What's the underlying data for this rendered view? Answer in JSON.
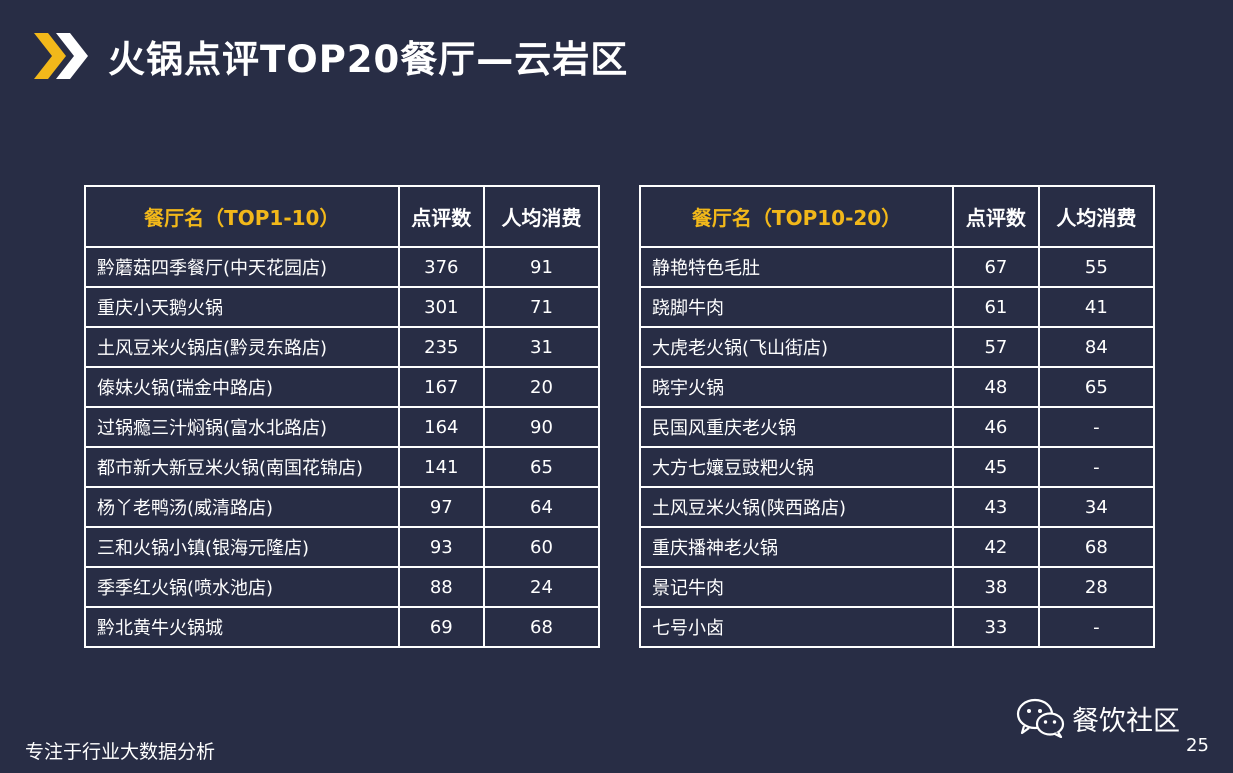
{
  "slide": {
    "title": "火锅点评TOP20餐厅—云岩区",
    "footer_text": "专注于行业大数据分析",
    "brand": "餐饮社区",
    "page_number": "25",
    "accent_color": "#f2b81a",
    "background_color": "#282d45"
  },
  "table_left": {
    "headers": [
      "餐厅名（TOP1-10）",
      "点评数",
      "人均消费"
    ],
    "rows": [
      [
        "黔蘑菇四季餐厅(中天花园店)",
        "376",
        "91"
      ],
      [
        "重庆小天鹅火锅",
        "301",
        "71"
      ],
      [
        "土风豆米火锅店(黔灵东路店)",
        "235",
        "31"
      ],
      [
        "傣妹火锅(瑞金中路店)",
        "167",
        "20"
      ],
      [
        "过锅瘾三汁焖锅(富水北路店)",
        "164",
        "90"
      ],
      [
        "都市新大新豆米火锅(南国花锦店)",
        "141",
        "65"
      ],
      [
        "杨丫老鸭汤(威清路店)",
        "97",
        "64"
      ],
      [
        "三和火锅小镇(银海元隆店)",
        "93",
        "60"
      ],
      [
        "季季红火锅(喷水池店)",
        "88",
        "24"
      ],
      [
        "黔北黄牛火锅城",
        "69",
        "68"
      ]
    ]
  },
  "table_right": {
    "headers": [
      "餐厅名（TOP10-20）",
      "点评数",
      "人均消费"
    ],
    "rows": [
      [
        "静艳特色毛肚",
        "67",
        "55"
      ],
      [
        "跷脚牛肉",
        "61",
        "41"
      ],
      [
        "大虎老火锅(飞山街店)",
        "57",
        "84"
      ],
      [
        "晓宇火锅",
        "48",
        "65"
      ],
      [
        "民国风重庆老火锅",
        "46",
        "-"
      ],
      [
        "大方七孃豆豉粑火锅",
        "45",
        "-"
      ],
      [
        "土风豆米火锅(陕西路店)",
        "43",
        "34"
      ],
      [
        "重庆播神老火锅",
        "42",
        "68"
      ],
      [
        "景记牛肉",
        "38",
        "28"
      ],
      [
        "七号小卤",
        "33",
        "-"
      ]
    ]
  },
  "icons": {
    "title_marker": "double-chevron-icon",
    "brand": "wechat-icon"
  }
}
